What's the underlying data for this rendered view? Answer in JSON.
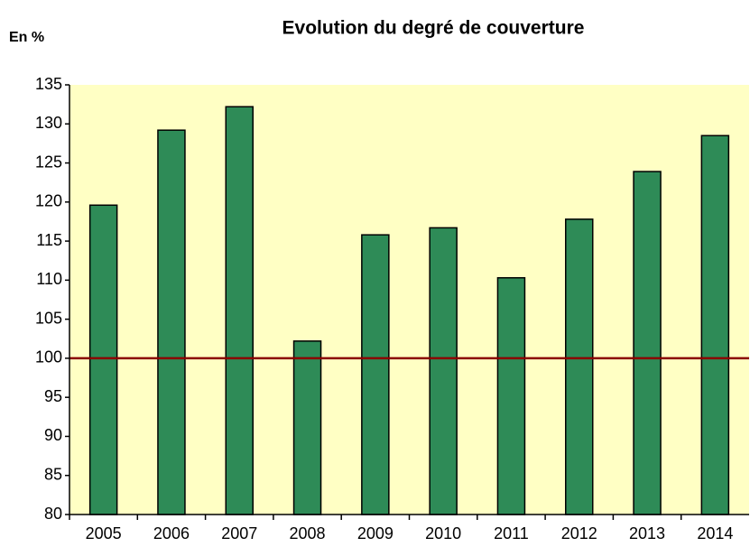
{
  "chart_data": {
    "type": "bar",
    "title": "Evolution du degré de couverture",
    "y_label": "En %",
    "categories": [
      "2005",
      "2006",
      "2007",
      "2008",
      "2009",
      "2010",
      "2011",
      "2012",
      "2013",
      "2014"
    ],
    "values": [
      119.6,
      129.2,
      132.2,
      102.2,
      115.8,
      116.7,
      110.3,
      117.8,
      123.9,
      128.5
    ],
    "color": "#2e8b57",
    "background": "#ffffc4",
    "ylim": [
      80,
      135
    ],
    "yticks": [
      80,
      85,
      90,
      95,
      100,
      105,
      110,
      115,
      120,
      125,
      130,
      135
    ],
    "reference_line": 100,
    "reference_color": "#8b0000",
    "grid": false
  }
}
